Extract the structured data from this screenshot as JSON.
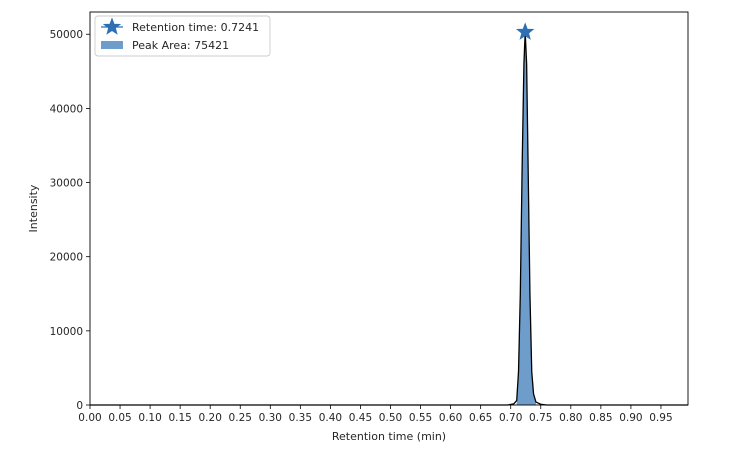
{
  "chart_data": {
    "type": "line",
    "xlabel": "Retention time (min)",
    "ylabel": "Intensity",
    "xlim": [
      0.0,
      0.995
    ],
    "ylim": [
      0,
      53000
    ],
    "xticks": [
      0.0,
      0.05,
      0.1,
      0.15,
      0.2,
      0.25,
      0.3,
      0.35,
      0.4,
      0.45,
      0.5,
      0.55,
      0.6,
      0.65,
      0.7,
      0.75,
      0.8,
      0.85,
      0.9,
      0.95
    ],
    "xtick_labels": [
      "0.00",
      "0.05",
      "0.10",
      "0.15",
      "0.20",
      "0.25",
      "0.30",
      "0.35",
      "0.40",
      "0.45",
      "0.50",
      "0.55",
      "0.60",
      "0.65",
      "0.70",
      "0.75",
      "0.80",
      "0.85",
      "0.90",
      "0.95"
    ],
    "yticks": [
      0,
      10000,
      20000,
      30000,
      40000,
      50000
    ],
    "ytick_labels": [
      "0",
      "10000",
      "20000",
      "30000",
      "40000",
      "50000"
    ],
    "grid": false,
    "legend_position": "top-left",
    "series": [
      {
        "x": [
          0.0,
          0.695,
          0.705,
          0.71,
          0.713,
          0.716,
          0.719,
          0.722,
          0.7241,
          0.7265,
          0.729,
          0.732,
          0.735,
          0.738,
          0.742,
          0.75,
          0.76,
          0.995
        ],
        "y": [
          0,
          0,
          150,
          600,
          4500,
          15000,
          32000,
          46000,
          50300,
          46000,
          32000,
          15000,
          4500,
          1500,
          400,
          100,
          0,
          0
        ]
      }
    ],
    "peak": {
      "x": 0.7241,
      "y": 50300,
      "marker": "star"
    },
    "fill_range": [
      0.71,
      0.742
    ],
    "legend": [
      {
        "label": "Retention time: 0.7241",
        "marker": "star"
      },
      {
        "label": "Peak Area: 75421",
        "marker": "patch"
      }
    ],
    "colors": {
      "line": "#000000",
      "fill": "#6f9dcb",
      "marker": "#2f6fb3",
      "frame": "#000000"
    }
  }
}
